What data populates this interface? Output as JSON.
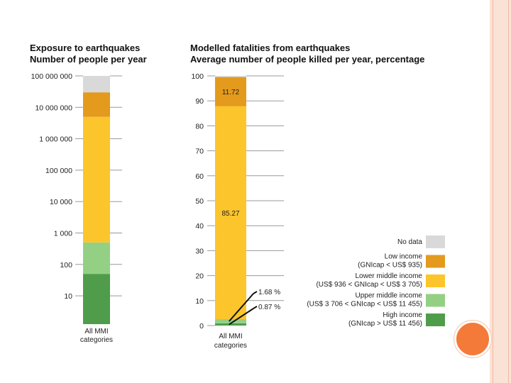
{
  "chart_data": [
    {
      "type": "bar",
      "stacked": true,
      "scale": "log",
      "title": "Exposure to earthquakes",
      "subtitle": "Number of people per year",
      "categories": [
        "All MMI categories"
      ],
      "category_lines": [
        "All MMI",
        "categories"
      ],
      "yticks": [
        "100 000 000",
        "10 000 000",
        "1 000 000",
        "100 000",
        "10 000",
        "1 000",
        "100",
        "10"
      ],
      "series": [
        {
          "name": "High income",
          "from": 1,
          "to": 50
        },
        {
          "name": "Upper middle income",
          "from": 50,
          "to": 500
        },
        {
          "name": "Lower middle income",
          "from": 500,
          "to": 5000000
        },
        {
          "name": "Low income",
          "from": 5000000,
          "to": 30000000
        },
        {
          "name": "No data",
          "from": 30000000,
          "to": 100000000
        }
      ]
    },
    {
      "type": "bar",
      "stacked": true,
      "title": "Modelled fatalities from earthquakes",
      "subtitle": "Average number of people killed per year, percentage",
      "categories": [
        "All MMI categories"
      ],
      "category_lines": [
        "All MMI",
        "categories"
      ],
      "ylim": [
        0,
        100
      ],
      "yticks": [
        0,
        10,
        20,
        30,
        40,
        50,
        60,
        70,
        80,
        90,
        100
      ],
      "series": [
        {
          "name": "High income",
          "value": 0.87,
          "label": "0.87 %"
        },
        {
          "name": "Upper middle income",
          "value": 1.68,
          "label": "1.68 %"
        },
        {
          "name": "Lower middle income",
          "value": 85.27,
          "label": "85.27"
        },
        {
          "name": "Low income",
          "value": 11.72,
          "label": "11.72"
        },
        {
          "name": "No data",
          "value": 0.46,
          "label": ""
        }
      ]
    }
  ],
  "legend": [
    {
      "line1": "No data",
      "line2": "",
      "color": "#d9d9d9"
    },
    {
      "line1": "Low income",
      "line2": "(GNIcap < US$ 935)",
      "color": "#e39a1d"
    },
    {
      "line1": "Lower middle income",
      "line2": "(US$ 936 < GNIcap < US$ 3 705)",
      "color": "#fcc52b"
    },
    {
      "line1": "Upper middle income",
      "line2": "(US$ 3 706 < GNIcap < US$ 11 455)",
      "color": "#94d084"
    },
    {
      "line1": "High income",
      "line2": "(GNIcap > US$ 11 456)",
      "color": "#4f9d4a"
    }
  ],
  "colors": {
    "No data": "#d9d9d9",
    "Low income": "#e39a1d",
    "Lower middle income": "#fcc52b",
    "Upper middle income": "#94d084",
    "High income": "#4f9d4a"
  }
}
